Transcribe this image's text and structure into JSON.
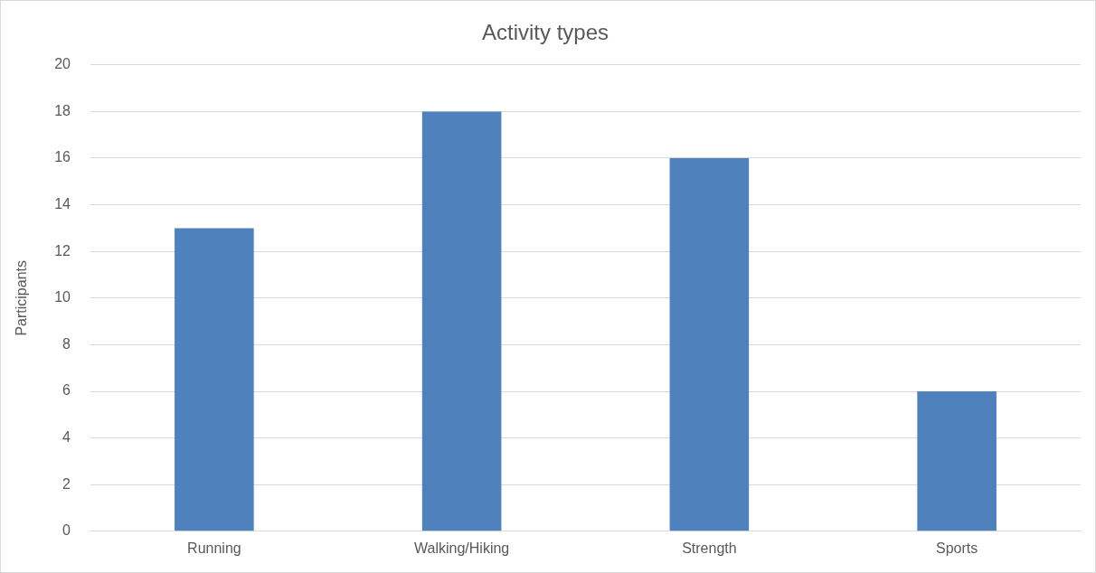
{
  "chart_data": {
    "type": "bar",
    "title": "Activity types",
    "ylabel": "Participants",
    "categories": [
      "Running",
      "Walking/Hiking",
      "Strength",
      "Sports"
    ],
    "values": [
      13,
      18,
      16,
      6
    ],
    "color": "#4f81bd",
    "ylim": [
      0,
      20
    ],
    "yticks": [
      0,
      2,
      4,
      6,
      8,
      10,
      12,
      14,
      16,
      18,
      20
    ],
    "grid": "y",
    "legend": false
  }
}
